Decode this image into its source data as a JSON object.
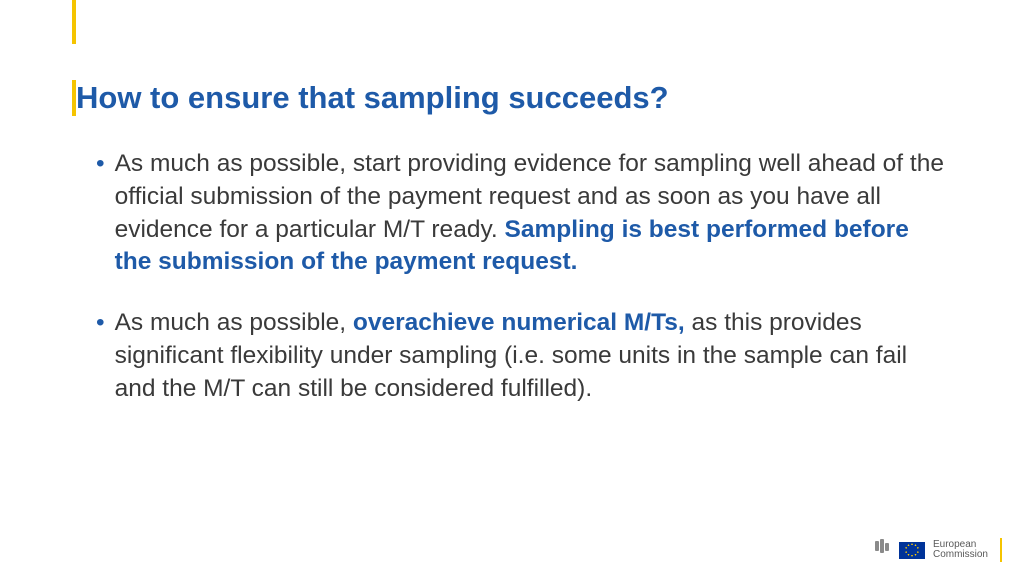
{
  "colors": {
    "title": "#1e5aa8",
    "accent": "#f5c400",
    "body_text": "#3a3a3a",
    "emphasis": "#1e5aa8",
    "eu_flag_bg": "#003399",
    "eu_flag_stars": "#ffcc00",
    "footer_grey": "#8a8a8a",
    "background": "#ffffff"
  },
  "typography": {
    "title_fontsize": 31,
    "body_fontsize": 24.5,
    "footer_fontsize": 10,
    "font_family": "Arial"
  },
  "title": "How to ensure that sampling succeeds?",
  "bullets": [
    {
      "runs": [
        {
          "text": "As much as possible, start providing evidence for sampling well ahead of the official submission of the payment request and as soon as you have all evidence for a particular M/T ready. ",
          "emph": false
        },
        {
          "text": "Sampling is best performed before the submission of the payment request.",
          "emph": true
        }
      ]
    },
    {
      "runs": [
        {
          "text": "As much as possible, ",
          "emph": false
        },
        {
          "text": "overachieve numerical M/Ts",
          "emph": true
        },
        {
          "text": ", ",
          "emph": true
        },
        {
          "text": "as this provides significant flexibility under sampling (i.e. some units in the sample can fail and the M/T can still be considered fulfilled).",
          "emph": false
        }
      ]
    }
  ],
  "footer": {
    "line1": "European",
    "line2": "Commission"
  }
}
